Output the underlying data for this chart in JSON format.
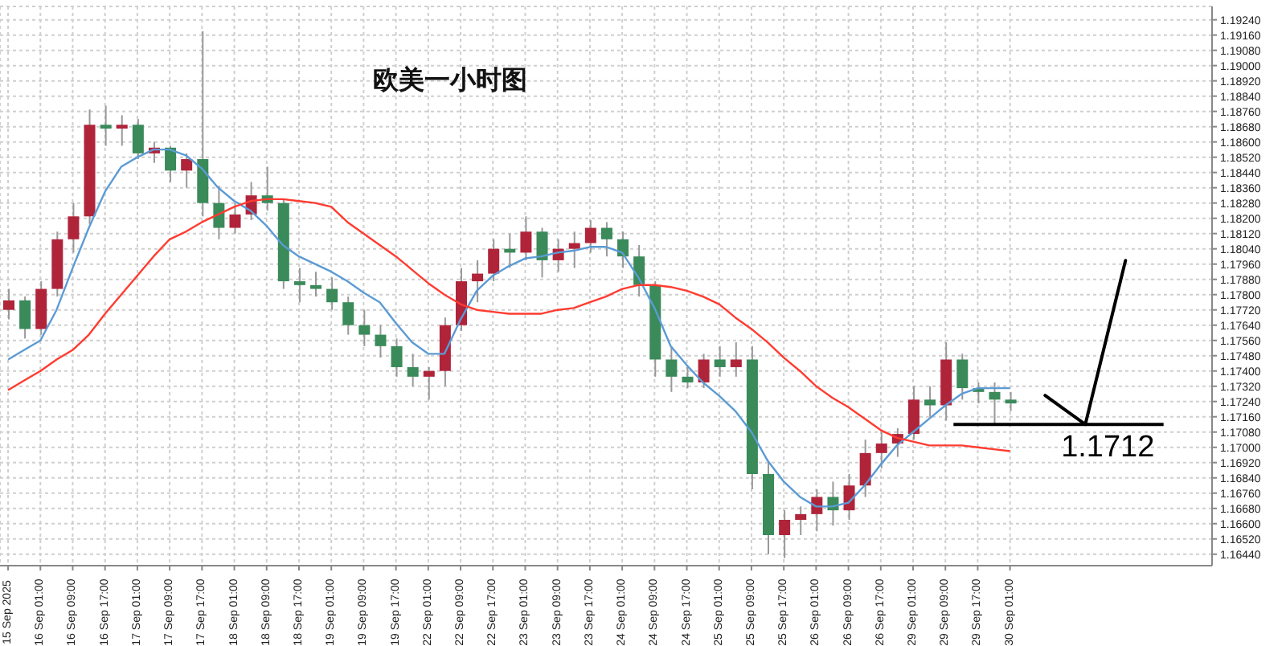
{
  "chart_data": {
    "type": "candlestick",
    "title": "欧美一小时图",
    "categories": [
      "15 Sep 2025",
      null,
      "16 Sep 01:00",
      null,
      "16 Sep 09:00",
      null,
      "16 Sep 17:00",
      null,
      "17 Sep 01:00",
      null,
      "17 Sep 09:00",
      null,
      "17 Sep 17:00",
      null,
      "18 Sep 01:00",
      null,
      "18 Sep 09:00",
      null,
      "18 Sep 17:00",
      null,
      "19 Sep 01:00",
      null,
      "19 Sep 09:00",
      null,
      "19 Sep 17:00",
      null,
      "22 Sep 01:00",
      null,
      "22 Sep 09:00",
      null,
      "22 Sep 17:00",
      null,
      "23 Sep 01:00",
      null,
      "23 Sep 09:00",
      null,
      "23 Sep 17:00",
      null,
      "24 Sep 01:00",
      null,
      "24 Sep 09:00",
      null,
      "24 Sep 17:00",
      null,
      "25 Sep 01:00",
      null,
      "25 Sep 09:00",
      null,
      "25 Sep 17:00",
      null,
      "26 Sep 01:00",
      null,
      "26 Sep 09:00",
      null,
      "26 Sep 17:00",
      null,
      "29 Sep 01:00",
      null,
      "29 Sep 09:00",
      null,
      "29 Sep 17:00",
      null,
      "30 Sep 01:00",
      null,
      null,
      null,
      null,
      null,
      null,
      null,
      null,
      null,
      null,
      null,
      null
    ],
    "ohlc": [
      [
        1.1772,
        1.1783,
        1.1767,
        1.1777
      ],
      [
        1.1777,
        1.1779,
        1.1757,
        1.1762
      ],
      [
        1.1762,
        1.1787,
        1.1759,
        1.1783
      ],
      [
        1.1783,
        1.1813,
        1.1779,
        1.1809
      ],
      [
        1.1809,
        1.1828,
        1.1802,
        1.1821
      ],
      [
        1.1821,
        1.1877,
        1.1817,
        1.1869
      ],
      [
        1.1869,
        1.1879,
        1.1858,
        1.1867
      ],
      [
        1.1867,
        1.1874,
        1.1858,
        1.1869
      ],
      [
        1.1869,
        1.1872,
        1.1851,
        1.1854
      ],
      [
        1.1854,
        1.186,
        1.1849,
        1.1857
      ],
      [
        1.1857,
        1.1858,
        1.1839,
        1.1845
      ],
      [
        1.1845,
        1.1854,
        1.1836,
        1.1851
      ],
      [
        1.1851,
        1.1918,
        1.1821,
        1.1828
      ],
      [
        1.1828,
        1.1837,
        1.1809,
        1.1815
      ],
      [
        1.1815,
        1.1828,
        1.1812,
        1.1822
      ],
      [
        1.1822,
        1.1839,
        1.1819,
        1.1832
      ],
      [
        1.1832,
        1.1847,
        1.1824,
        1.1828
      ],
      [
        1.1828,
        1.183,
        1.1783,
        1.1787
      ],
      [
        1.1787,
        1.1794,
        1.1776,
        1.1785
      ],
      [
        1.1785,
        1.1792,
        1.1779,
        1.1783
      ],
      [
        1.1783,
        1.1789,
        1.1772,
        1.1776
      ],
      [
        1.1776,
        1.1779,
        1.1759,
        1.1764
      ],
      [
        1.1764,
        1.1772,
        1.1753,
        1.1759
      ],
      [
        1.1759,
        1.1764,
        1.1747,
        1.1753
      ],
      [
        1.1753,
        1.1757,
        1.1737,
        1.1742
      ],
      [
        1.1742,
        1.1749,
        1.1732,
        1.1737
      ],
      [
        1.1737,
        1.1742,
        1.1725,
        1.174
      ],
      [
        1.174,
        1.1768,
        1.1732,
        1.1764
      ],
      [
        1.1764,
        1.1794,
        1.1761,
        1.1787
      ],
      [
        1.1787,
        1.1798,
        1.1776,
        1.1791
      ],
      [
        1.1791,
        1.1809,
        1.1787,
        1.1804
      ],
      [
        1.1804,
        1.1812,
        1.1794,
        1.1802
      ],
      [
        1.1802,
        1.1821,
        1.1798,
        1.1813
      ],
      [
        1.1813,
        1.1815,
        1.1789,
        1.1798
      ],
      [
        1.1798,
        1.1809,
        1.1792,
        1.1804
      ],
      [
        1.1804,
        1.1813,
        1.1794,
        1.1807
      ],
      [
        1.1807,
        1.1819,
        1.1802,
        1.1815
      ],
      [
        1.1815,
        1.1818,
        1.18,
        1.1809
      ],
      [
        1.1809,
        1.1813,
        1.1794,
        1.18
      ],
      [
        1.18,
        1.1806,
        1.1779,
        1.1785
      ],
      [
        1.1785,
        1.1787,
        1.1737,
        1.1746
      ],
      [
        1.1746,
        1.1753,
        1.1729,
        1.1737
      ],
      [
        1.1737,
        1.1742,
        1.1731,
        1.1734
      ],
      [
        1.1734,
        1.1749,
        1.1731,
        1.1746
      ],
      [
        1.1746,
        1.1753,
        1.1737,
        1.1742
      ],
      [
        1.1742,
        1.1755,
        1.1737,
        1.1746
      ],
      [
        1.1746,
        1.1753,
        1.1678,
        1.1686
      ],
      [
        1.1686,
        1.1693,
        1.1644,
        1.1654
      ],
      [
        1.1654,
        1.1667,
        1.1642,
        1.1662
      ],
      [
        1.1662,
        1.1669,
        1.1654,
        1.1665
      ],
      [
        1.1665,
        1.1678,
        1.1656,
        1.1674
      ],
      [
        1.1674,
        1.1682,
        1.1659,
        1.1667
      ],
      [
        1.1667,
        1.1686,
        1.1662,
        1.168
      ],
      [
        1.168,
        1.1704,
        1.1674,
        1.1697
      ],
      [
        1.1697,
        1.1708,
        1.1689,
        1.1702
      ],
      [
        1.1702,
        1.171,
        1.1695,
        1.1707
      ],
      [
        1.1707,
        1.1732,
        1.1704,
        1.1725
      ],
      [
        1.1725,
        1.1732,
        1.1716,
        1.1722
      ],
      [
        1.1722,
        1.1755,
        1.1714,
        1.1746
      ],
      [
        1.1746,
        1.1749,
        1.1725,
        1.1731
      ],
      [
        1.1731,
        1.1734,
        1.1723,
        1.1729
      ],
      [
        1.1729,
        1.1734,
        1.1712,
        1.1725
      ],
      [
        1.1725,
        1.1729,
        1.1719,
        1.1723
      ],
      null,
      null,
      null,
      null,
      null,
      null,
      null,
      null,
      null,
      null,
      null,
      null
    ],
    "colors": [
      "#b0243a",
      "#3a8a5a",
      "#b0243a",
      "#b0243a",
      "#b0243a",
      "#b0243a",
      "#3a8a5a",
      "#b0243a",
      "#3a8a5a",
      "#b0243a",
      "#3a8a5a",
      "#b0243a",
      "#3a8a5a",
      "#3a8a5a",
      "#b0243a",
      "#b0243a",
      "#3a8a5a",
      "#3a8a5a",
      "#3a8a5a",
      "#3a8a5a",
      "#3a8a5a",
      "#3a8a5a",
      "#3a8a5a",
      "#3a8a5a",
      "#3a8a5a",
      "#3a8a5a",
      "#b0243a",
      "#b0243a",
      "#b0243a",
      "#b0243a",
      "#b0243a",
      "#3a8a5a",
      "#b0243a",
      "#3a8a5a",
      "#b0243a",
      "#b0243a",
      "#b0243a",
      "#3a8a5a",
      "#3a8a5a",
      "#3a8a5a",
      "#3a8a5a",
      "#3a8a5a",
      "#3a8a5a",
      "#b0243a",
      "#3a8a5a",
      "#b0243a",
      "#3a8a5a",
      "#3a8a5a",
      "#b0243a",
      "#b0243a",
      "#b0243a",
      "#3a8a5a",
      "#b0243a",
      "#b0243a",
      "#b0243a",
      "#b0243a",
      "#b0243a",
      "#3a8a5a",
      "#b0243a",
      "#3a8a5a",
      "#3a8a5a",
      "#3a8a5a",
      "#3a8a5a",
      null,
      null,
      null,
      null,
      null,
      null,
      null,
      null,
      null,
      null,
      null,
      null
    ],
    "series": [
      {
        "type": "line",
        "color": "#5b9bd5",
        "values": [
          1.1746,
          1.1751,
          1.1756,
          1.1772,
          1.1794,
          1.1815,
          1.1834,
          1.1847,
          1.1852,
          1.1856,
          1.1856,
          1.1853,
          1.1846,
          1.1836,
          1.1829,
          1.1824,
          1.1816,
          1.1806,
          1.18,
          1.1796,
          1.1792,
          1.1787,
          1.1781,
          1.1776,
          1.1765,
          1.1755,
          1.1749,
          1.1749,
          1.1767,
          1.1782,
          1.179,
          1.1795,
          1.1799,
          1.18,
          1.1802,
          1.1803,
          1.1805,
          1.1805,
          1.1802,
          1.1789,
          1.1773,
          1.1753,
          1.1743,
          1.1734,
          1.1727,
          1.1719,
          1.1708,
          1.1693,
          1.1682,
          1.1674,
          1.1669,
          1.1669,
          1.1671,
          1.168,
          1.1691,
          1.1701,
          1.1708,
          1.1715,
          1.1722,
          1.1728,
          1.1731,
          1.1731,
          1.1731,
          null,
          null,
          null,
          null,
          null,
          null,
          null,
          null,
          null,
          null,
          null,
          null
        ]
      },
      {
        "type": "line",
        "color": "#ff3b30",
        "values": [
          1.173,
          1.1735,
          1.174,
          1.1746,
          1.1751,
          1.1759,
          1.177,
          1.178,
          1.179,
          1.18,
          1.1809,
          1.1813,
          1.1818,
          1.1822,
          1.1826,
          1.1829,
          1.183,
          1.183,
          1.1829,
          1.1828,
          1.1826,
          1.1818,
          1.1812,
          1.1806,
          1.18,
          1.1793,
          1.1786,
          1.178,
          1.1775,
          1.1772,
          1.1771,
          1.177,
          1.177,
          1.177,
          1.1772,
          1.1773,
          1.1776,
          1.1779,
          1.1783,
          1.1785,
          1.1785,
          1.1784,
          1.1782,
          1.1779,
          1.1775,
          1.1768,
          1.1762,
          1.1755,
          1.1747,
          1.174,
          1.1732,
          1.1726,
          1.1721,
          1.1715,
          1.1709,
          1.1705,
          1.1703,
          1.1701,
          1.1701,
          1.1701,
          1.17,
          1.1699,
          1.1698,
          null,
          null,
          null,
          null,
          null,
          null,
          null,
          null,
          null,
          null,
          null,
          null
        ]
      }
    ],
    "ylim": [
      1.1638,
      1.1931
    ],
    "yticks": [
      {
        "value": 1.1924,
        "label": "1.19240"
      },
      {
        "value": 1.1916,
        "label": "1.19160"
      },
      {
        "value": 1.1908,
        "label": "1.19080"
      },
      {
        "value": 1.19,
        "label": "1.19000"
      },
      {
        "value": 1.1892,
        "label": "1.18920"
      },
      {
        "value": 1.1884,
        "label": "1.18840"
      },
      {
        "value": 1.1876,
        "label": "1.18760"
      },
      {
        "value": 1.1868,
        "label": "1.18680"
      },
      {
        "value": 1.186,
        "label": "1.18600"
      },
      {
        "value": 1.1852,
        "label": "1.18520"
      },
      {
        "value": 1.1844,
        "label": "1.18440"
      },
      {
        "value": 1.1836,
        "label": "1.18360"
      },
      {
        "value": 1.1828,
        "label": "1.18280"
      },
      {
        "value": 1.182,
        "label": "1.18200"
      },
      {
        "value": 1.1812,
        "label": "1.18120"
      },
      {
        "value": 1.1804,
        "label": "1.18040"
      },
      {
        "value": 1.1796,
        "label": "1.17960"
      },
      {
        "value": 1.1788,
        "label": "1.17880"
      },
      {
        "value": 1.178,
        "label": "1.17800"
      },
      {
        "value": 1.1772,
        "label": "1.17720"
      },
      {
        "value": 1.1764,
        "label": "1.17640"
      },
      {
        "value": 1.1756,
        "label": "1.17560"
      },
      {
        "value": 1.1748,
        "label": "1.17480"
      },
      {
        "value": 1.174,
        "label": "1.17400"
      },
      {
        "value": 1.1732,
        "label": "1.17320"
      },
      {
        "value": 1.1724,
        "label": "1.17240"
      },
      {
        "value": 1.1716,
        "label": "1.17160"
      },
      {
        "value": 1.1708,
        "label": "1.17080"
      },
      {
        "value": 1.17,
        "label": "1.17000"
      },
      {
        "value": 1.1692,
        "label": "1.16920"
      },
      {
        "value": 1.1684,
        "label": "1.16840"
      },
      {
        "value": 1.1676,
        "label": "1.16760"
      },
      {
        "value": 1.1668,
        "label": "1.16680"
      },
      {
        "value": 1.166,
        "label": "1.16600"
      },
      {
        "value": 1.1652,
        "label": "1.16520"
      },
      {
        "value": 1.1644,
        "label": "1.16440"
      }
    ],
    "grid": true,
    "ref_lines": [
      {
        "axis": "y",
        "value": 1.1712,
        "label": "1.1712",
        "color": "#000000"
      }
    ]
  }
}
